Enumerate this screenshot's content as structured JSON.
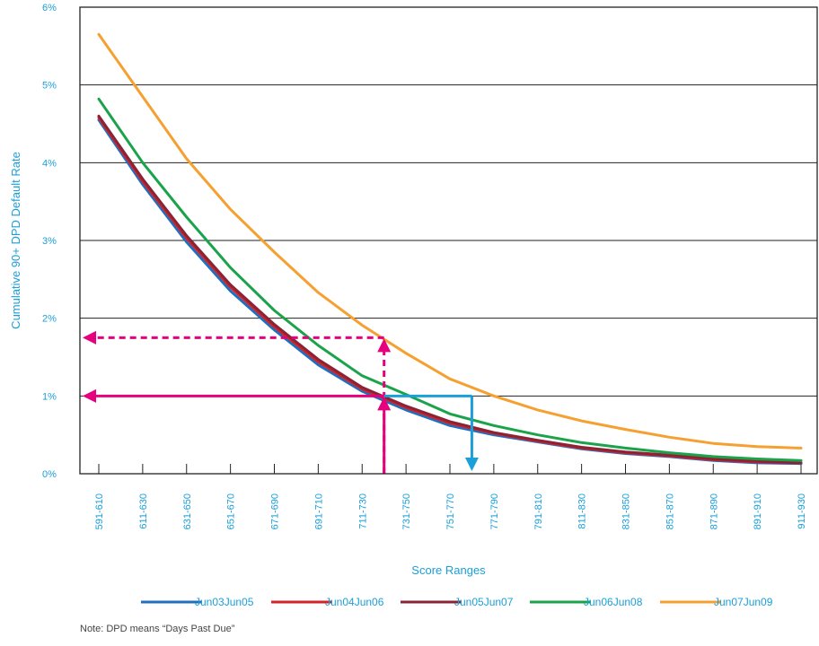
{
  "chart_data": {
    "type": "line",
    "title": "",
    "xlabel": "Score Ranges",
    "ylabel": "Cumulative 90+ DPD Default Rate",
    "categories": [
      "591-610",
      "611-630",
      "631-650",
      "651-670",
      "671-690",
      "691-710",
      "711-730",
      "731-750",
      "751-770",
      "771-790",
      "791-810",
      "811-830",
      "831-850",
      "851-870",
      "871-890",
      "891-910",
      "911-930"
    ],
    "y_ticks": [
      "0%",
      "1%",
      "2%",
      "3%",
      "4%",
      "5%",
      "6%"
    ],
    "ylim": [
      0,
      6
    ],
    "grid": "horizontal",
    "legend_position": "bottom",
    "series": [
      {
        "name": "Jun03Jun05",
        "color": "#1f6fbf",
        "values": [
          4.55,
          3.72,
          2.98,
          2.35,
          1.85,
          1.4,
          1.06,
          0.82,
          0.62,
          0.5,
          0.41,
          0.32,
          0.26,
          0.22,
          0.17,
          0.14,
          0.13
        ]
      },
      {
        "name": "Jun04Jun06",
        "color": "#d2232a",
        "values": [
          4.58,
          3.76,
          3.03,
          2.4,
          1.89,
          1.44,
          1.09,
          0.85,
          0.65,
          0.52,
          0.42,
          0.33,
          0.27,
          0.23,
          0.18,
          0.15,
          0.14
        ]
      },
      {
        "name": "Jun05Jun07",
        "color": "#8b2335",
        "values": [
          4.6,
          3.79,
          3.06,
          2.43,
          1.92,
          1.47,
          1.11,
          0.87,
          0.67,
          0.53,
          0.43,
          0.34,
          0.28,
          0.24,
          0.19,
          0.16,
          0.14
        ]
      },
      {
        "name": "Jun06Jun08",
        "color": "#1aa34a",
        "values": [
          4.82,
          4.0,
          3.3,
          2.65,
          2.1,
          1.65,
          1.26,
          1.02,
          0.77,
          0.62,
          0.5,
          0.4,
          0.33,
          0.27,
          0.22,
          0.19,
          0.17
        ]
      },
      {
        "name": "Jun07Jun09",
        "color": "#f5a030",
        "values": [
          5.65,
          4.85,
          4.05,
          3.4,
          2.85,
          2.33,
          1.91,
          1.55,
          1.22,
          1.0,
          0.82,
          0.68,
          0.57,
          0.47,
          0.39,
          0.35,
          0.33
        ]
      }
    ],
    "annotations": [
      {
        "name": "pink-dashed",
        "color": "#e6007e",
        "style": "dashed",
        "x": "731-750",
        "y": 1.75
      },
      {
        "name": "pink-solid",
        "color": "#e6007e",
        "style": "solid",
        "x": "731-750",
        "y": 1.0
      },
      {
        "name": "blue-solid",
        "color": "#1a9fd8",
        "style": "solid",
        "x": "771-790",
        "y": 1.0
      }
    ]
  },
  "note": "Note: DPD means “Days Past Due”"
}
